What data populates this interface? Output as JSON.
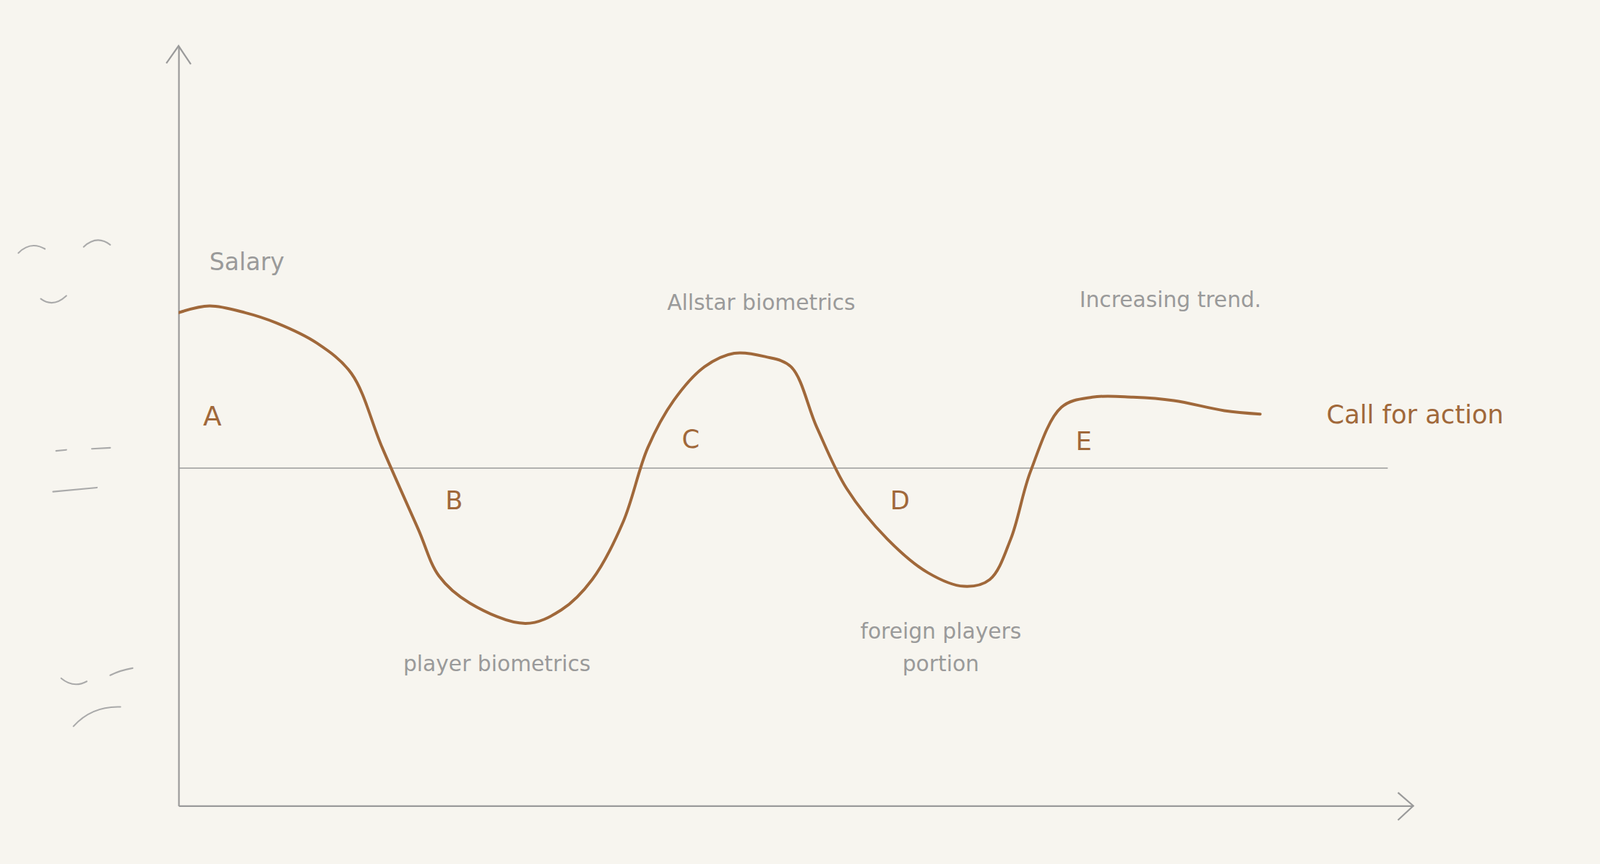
{
  "chart_data": {
    "type": "line",
    "x": [
      0,
      2.5,
      5.4,
      7.9,
      11.2,
      14.0,
      16.5,
      19.4,
      21.1,
      23.6,
      28.1,
      31.0,
      33.5,
      36.0,
      38.0,
      40.1,
      42.6,
      45.0,
      47.5,
      49.6,
      51.7,
      54.1,
      57.4,
      60.7,
      63.6,
      65.7,
      67.4,
      69.0,
      71.5,
      74.0,
      77.3,
      80.6,
      84.7,
      87.6
    ],
    "values": [
      4.6,
      4.8,
      4.6,
      4.3,
      3.7,
      2.8,
      0.6,
      -1.8,
      -3.2,
      -4.0,
      -4.6,
      -4.2,
      -3.3,
      -1.6,
      0.6,
      2.0,
      3.0,
      3.4,
      3.3,
      3.0,
      1.2,
      -0.6,
      -2.1,
      -3.1,
      -3.5,
      -3.3,
      -2.1,
      -0.1,
      1.8,
      2.1,
      2.1,
      2.0,
      1.7,
      1.6
    ],
    "color": "#a0683a",
    "xlim": [
      0,
      100
    ],
    "xticks": [],
    "ylim": [
      -10,
      12.5
    ],
    "yticks": [
      0
    ],
    "grid": true,
    "tick_labels": false,
    "annotations": [
      "Salary",
      "A",
      "B",
      "player biometrics",
      "C",
      "Allstar biometrics",
      "D",
      "foreign players portion",
      "E",
      "Increasing trend.",
      "Call for action"
    ]
  }
}
